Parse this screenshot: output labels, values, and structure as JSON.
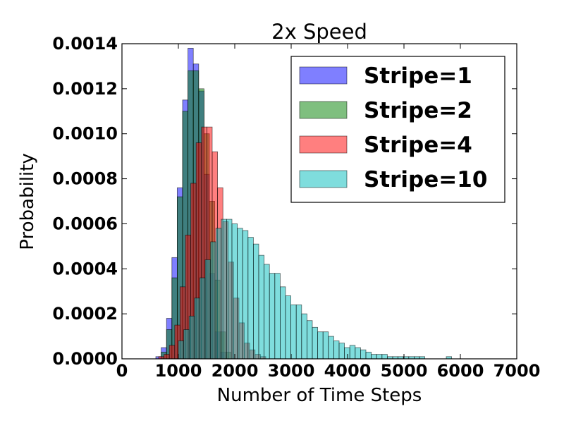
{
  "chart_data": {
    "type": "bar",
    "title": "2x Speed",
    "xlabel": "Number of Time Steps",
    "ylabel": "Probability",
    "xlim": [
      0,
      7000
    ],
    "ylim": [
      0,
      0.0014
    ],
    "xticks": [
      "0",
      "1000",
      "2000",
      "3000",
      "4000",
      "5000",
      "6000",
      "7000"
    ],
    "yticks": [
      "0.0000",
      "0.0002",
      "0.0004",
      "0.0006",
      "0.0008",
      "0.0010",
      "0.0012",
      "0.0014"
    ],
    "grid": false,
    "legend_position": "top-right",
    "series": [
      {
        "name": "Stripe=1",
        "color": "#0000ff",
        "bin_start": 600,
        "bin_width": 95,
        "values": [
          1e-05,
          5e-05,
          0.00018,
          0.00045,
          0.00076,
          0.00115,
          0.00138,
          0.00131,
          0.00119,
          0.00082,
          0.00038,
          0.00012,
          3e-05
        ]
      },
      {
        "name": "Stripe=2",
        "color": "#008000",
        "bin_start": 600,
        "bin_width": 95,
        "values": [
          0.0,
          3e-05,
          0.00013,
          0.00036,
          0.00072,
          0.0011,
          0.00128,
          0.00128,
          0.0012,
          0.001,
          0.0007,
          0.00035,
          0.00012,
          3e-05
        ]
      },
      {
        "name": "Stripe=4",
        "color": "#ff0000",
        "bin_start": 650,
        "bin_width": 95,
        "values": [
          1e-05,
          2e-05,
          6e-05,
          0.00015,
          0.00032,
          0.00055,
          0.00078,
          0.00096,
          0.00103,
          0.00103,
          0.00092,
          0.00076,
          0.00061,
          0.00043,
          0.00027,
          0.00016,
          7e-05,
          4e-05,
          2e-05,
          1e-05
        ]
      },
      {
        "name": "Stripe=10",
        "color": "#00bbbb",
        "bin_start": 1000,
        "bin_width": 95,
        "values": [
          8e-05,
          0.00013,
          0.00019,
          0.00027,
          0.00036,
          0.00044,
          0.00052,
          0.00058,
          0.00062,
          0.00062,
          0.0006,
          0.00058,
          0.00057,
          0.00054,
          0.00051,
          0.00046,
          0.00042,
          0.00038,
          0.00038,
          0.00032,
          0.00028,
          0.00024,
          0.00024,
          0.0002,
          0.00017,
          0.00014,
          0.00012,
          0.00012,
          0.0001,
          8e-05,
          7e-05,
          5e-05,
          6e-05,
          5e-05,
          4e-05,
          3e-05,
          2e-05,
          2e-05,
          2e-05,
          1e-05,
          1e-05,
          1e-05,
          1e-05,
          1e-05,
          1e-05,
          1e-05,
          0.0,
          0.0,
          0.0,
          0.0,
          1e-05,
          0.0,
          0.0,
          0.0,
          0.0,
          0.0,
          0.0
        ]
      }
    ]
  }
}
